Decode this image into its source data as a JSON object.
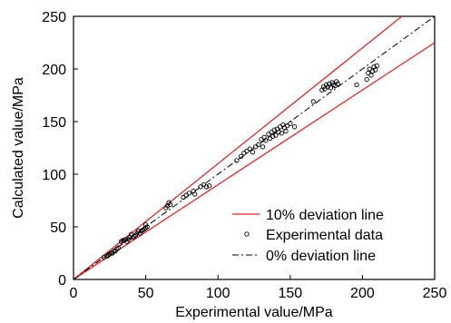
{
  "chart_data": {
    "type": "scatter",
    "xlabel": "Experimental value/MPa",
    "ylabel": "Calculated value/MPa",
    "xlim": [
      0,
      250
    ],
    "ylim": [
      0,
      250
    ],
    "x_ticks": [
      0,
      50,
      100,
      150,
      200,
      250
    ],
    "y_ticks": [
      0,
      50,
      100,
      150,
      200,
      250
    ],
    "grid": false,
    "legend_position": "bottom-right",
    "colors": {
      "deviation_10": "#e0262b",
      "deviation_0": "#000000",
      "markers": "#000000"
    },
    "series": [
      {
        "name": "10% deviation line",
        "type": "line",
        "x": [
          0,
          250
        ],
        "y_upper": [
          0,
          275
        ],
        "y_lower": [
          0,
          225
        ]
      },
      {
        "name": "Experimental data",
        "type": "scatter",
        "x": [
          21,
          23,
          24,
          25,
          26,
          27,
          28,
          29,
          30,
          31,
          33,
          34,
          35,
          36,
          37,
          38,
          39,
          40,
          41,
          42,
          43,
          44,
          45,
          46,
          47,
          48,
          49,
          50,
          50,
          51,
          64,
          65,
          66,
          67,
          76,
          78,
          80,
          83,
          84,
          88,
          90,
          92,
          94,
          113,
          116,
          118,
          120,
          122,
          124,
          126,
          128,
          130,
          131,
          132,
          133,
          135,
          136,
          137,
          138,
          139,
          140,
          141,
          142,
          143,
          144,
          145,
          146,
          147,
          148,
          150,
          153,
          166,
          172,
          173,
          174,
          175,
          176,
          177,
          178,
          179,
          180,
          181,
          182,
          183,
          196,
          203,
          204,
          205,
          206,
          207,
          208,
          209,
          210
        ],
        "y": [
          21,
          22,
          23,
          24,
          25,
          25,
          27,
          27,
          29,
          30,
          36,
          37,
          37,
          38,
          36,
          38,
          40,
          43,
          40,
          41,
          42,
          44,
          46,
          44,
          46,
          47,
          48,
          49,
          52,
          50,
          68,
          70,
          73,
          71,
          78,
          80,
          82,
          84,
          81,
          88,
          90,
          88,
          89,
          113,
          117,
          120,
          122,
          124,
          121,
          126,
          128,
          133,
          126,
          135,
          132,
          138,
          134,
          140,
          136,
          142,
          137,
          143,
          140,
          145,
          139,
          147,
          144,
          141,
          146,
          148,
          145,
          169,
          180,
          183,
          181,
          185,
          183,
          186,
          182,
          187,
          185,
          184,
          188,
          186,
          185,
          190,
          196,
          200,
          194,
          198,
          202,
          199,
          203
        ]
      },
      {
        "name": "0% deviation line",
        "type": "line",
        "x": [
          0,
          250
        ],
        "y": [
          0,
          250
        ]
      }
    ]
  }
}
